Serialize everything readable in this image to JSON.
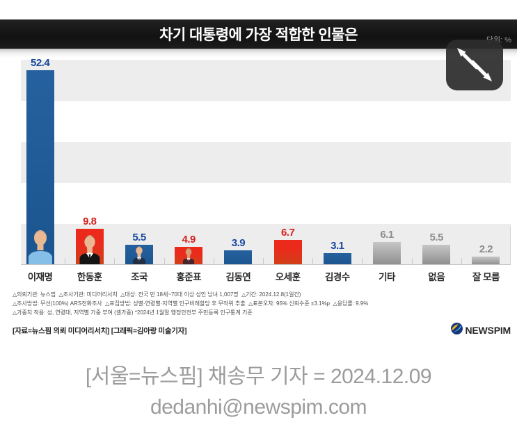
{
  "graphic": {
    "title": "차기 대통령에 가장 적합한 인물은",
    "unit_label": "단위: %",
    "footnotes": [
      "△의뢰기관: 뉴스핌  △조사기관: 미디어리서치  △대상: 전국 만 18세~70대 이상 성인 남녀 1,007명  △기간: 2024.12.8(1일간)",
      "△조사방법: 무선(100%) ARS전화조사  △표집방법: 성별·연령별·지역별 인구비례할당 후 무작위 추출  △표본오차: 95% 신뢰수준 ±3.1%p  △응답률: 9.9%",
      "△가중치 적용: 성, 연령대, 지역별 가중 부여 (셀가중) *2024년 1월말 행정안전부 주민등록 인구통계 기준"
    ],
    "source_line": "[자료=뉴스핌 의뢰 미디어리서치] [그래픽=김아랑 미술기자]",
    "logo_text": "NEWSPIM"
  },
  "chart_data": {
    "type": "bar",
    "title": "차기 대통령에 가장 적합한 인물은",
    "unit": "%",
    "ylim": [
      0,
      60
    ],
    "grid": "horizontal-stripes",
    "legend": "none",
    "categories": [
      "이재명",
      "한동훈",
      "조국",
      "홍준표",
      "김동연",
      "오세훈",
      "김경수",
      "기타",
      "없음",
      "잘 모름"
    ],
    "values": [
      52.4,
      9.8,
      5.5,
      4.9,
      3.9,
      6.7,
      3.1,
      6.1,
      5.5,
      2.2
    ],
    "items": [
      {
        "label": "이재명",
        "value": 52.4,
        "color": "blue",
        "avatar": "light-blue-shirt"
      },
      {
        "label": "한동훈",
        "value": 9.8,
        "color": "red",
        "avatar": "black-suit"
      },
      {
        "label": "조국",
        "value": 5.5,
        "color": "blue",
        "avatar": "navy-suit"
      },
      {
        "label": "홍준표",
        "value": 4.9,
        "color": "red",
        "avatar": "dark-suit-red-tie"
      },
      {
        "label": "김동연",
        "value": 3.9,
        "color": "blue",
        "avatar": null
      },
      {
        "label": "오세훈",
        "value": 6.7,
        "color": "red",
        "avatar": null
      },
      {
        "label": "김경수",
        "value": 3.1,
        "color": "blue",
        "avatar": null
      },
      {
        "label": "기타",
        "value": 6.1,
        "color": "gray",
        "avatar": null
      },
      {
        "label": "없음",
        "value": 5.5,
        "color": "gray",
        "avatar": null
      },
      {
        "label": "잘 모름",
        "value": 2.2,
        "color": "gray",
        "avatar": null
      }
    ],
    "colors": {
      "blue": "#1b558f",
      "red": "#e6261d",
      "gray": "#a9a9a9",
      "value_blue": "#17489e",
      "value_red": "#d6211c",
      "value_gray": "#8c8c8c"
    }
  },
  "caption": {
    "line1": "[서울=뉴스핌] 채송무 기자 = 2024.12.09",
    "line2": "dedanhi@newspim.com"
  }
}
